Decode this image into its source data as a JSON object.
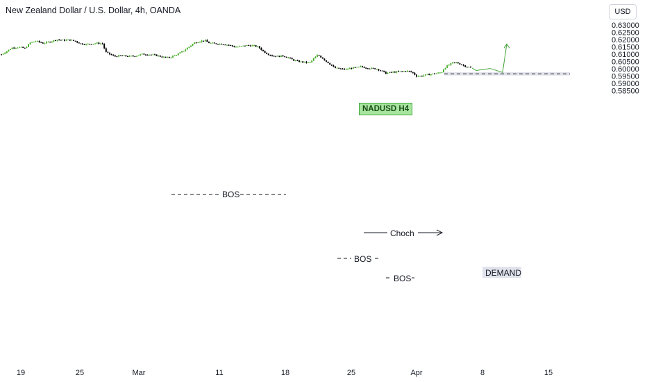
{
  "header": {
    "title": "New Zealand Dollar / U.S. Dollar, 4h, OANDA",
    "currency_button": "USD"
  },
  "annotations": {
    "label": "NADUSD H4",
    "bos_1": "BOS",
    "bos_2": "BOS",
    "bos_3": "BOS",
    "choch": "Choch",
    "demand": "DEMAND"
  },
  "colors": {
    "up": "#4caf2e",
    "down": "#000000",
    "projection": "#43a33a",
    "demand_zone": "#e0e3eb"
  },
  "chart_data": {
    "type": "candlestick",
    "title": "New Zealand Dollar / U.S. Dollar, 4h, OANDA",
    "x_tick_labels": [
      "19",
      "25",
      "Mar",
      "11",
      "18",
      "25",
      "Apr",
      "8",
      "15"
    ],
    "y_tick_labels": [
      "0.63000",
      "0.62500",
      "0.62000",
      "0.61500",
      "0.61000",
      "0.60500",
      "0.60000",
      "0.59500",
      "0.59000",
      "0.58500"
    ],
    "ylim": [
      0.584,
      0.6315
    ],
    "path": [
      [
        0,
        0.6092
      ],
      [
        8,
        0.6115
      ],
      [
        18,
        0.6145
      ],
      [
        28,
        0.6148
      ],
      [
        36,
        0.614
      ],
      [
        44,
        0.618
      ],
      [
        52,
        0.619
      ],
      [
        62,
        0.6175
      ],
      [
        72,
        0.6185
      ],
      [
        82,
        0.62
      ],
      [
        92,
        0.6195
      ],
      [
        100,
        0.6198
      ],
      [
        108,
        0.619
      ],
      [
        116,
        0.6172
      ],
      [
        124,
        0.6168
      ],
      [
        132,
        0.6172
      ],
      [
        140,
        0.6175
      ],
      [
        148,
        0.6172
      ],
      [
        152,
        0.6115
      ],
      [
        158,
        0.61
      ],
      [
        165,
        0.6085
      ],
      [
        175,
        0.609
      ],
      [
        185,
        0.6085
      ],
      [
        195,
        0.6088
      ],
      [
        205,
        0.61
      ],
      [
        215,
        0.6098
      ],
      [
        225,
        0.6092
      ],
      [
        235,
        0.608
      ],
      [
        243,
        0.6075
      ],
      [
        250,
        0.6088
      ],
      [
        258,
        0.6105
      ],
      [
        265,
        0.6125
      ],
      [
        272,
        0.615
      ],
      [
        280,
        0.6178
      ],
      [
        288,
        0.6188
      ],
      [
        295,
        0.6195
      ],
      [
        300,
        0.6178
      ],
      [
        310,
        0.6172
      ],
      [
        320,
        0.617
      ],
      [
        330,
        0.6162
      ],
      [
        338,
        0.615
      ],
      [
        345,
        0.6152
      ],
      [
        355,
        0.616
      ],
      [
        365,
        0.6158
      ],
      [
        372,
        0.615
      ],
      [
        378,
        0.6125
      ],
      [
        384,
        0.6105
      ],
      [
        392,
        0.609
      ],
      [
        400,
        0.6085
      ],
      [
        408,
        0.6088
      ],
      [
        416,
        0.6075
      ],
      [
        422,
        0.606
      ],
      [
        430,
        0.605
      ],
      [
        438,
        0.6045
      ],
      [
        446,
        0.604
      ],
      [
        452,
        0.607
      ],
      [
        458,
        0.6095
      ],
      [
        464,
        0.6075
      ],
      [
        470,
        0.605
      ],
      [
        476,
        0.603
      ],
      [
        482,
        0.6005
      ],
      [
        490,
        0.6
      ],
      [
        498,
        0.5995
      ],
      [
        506,
        0.6005
      ],
      [
        514,
        0.6008
      ],
      [
        520,
        0.6015
      ],
      [
        526,
        0.6008
      ],
      [
        534,
        0.6002
      ],
      [
        542,
        0.6
      ],
      [
        550,
        0.5985
      ],
      [
        556,
        0.5968
      ],
      [
        562,
        0.5975
      ],
      [
        570,
        0.5978
      ],
      [
        578,
        0.598
      ],
      [
        586,
        0.5985
      ],
      [
        594,
        0.5975
      ],
      [
        600,
        0.595
      ],
      [
        606,
        0.595
      ],
      [
        614,
        0.5958
      ],
      [
        620,
        0.5962
      ],
      [
        628,
        0.5968
      ],
      [
        636,
        0.5975
      ],
      [
        640,
        0.6005
      ],
      [
        646,
        0.6025
      ],
      [
        652,
        0.604
      ],
      [
        658,
        0.6042
      ],
      [
        664,
        0.603
      ],
      [
        670,
        0.6018
      ],
      [
        676,
        0.601
      ],
      [
        680,
        0.6005
      ]
    ],
    "demand_zone": {
      "x_from": 640,
      "x_to": 821,
      "y_top": 0.5976,
      "y_bottom": 0.5954,
      "line": 0.5965
    },
    "projection": [
      [
        680,
        0.6005
      ],
      [
        686,
        0.5988
      ],
      [
        706,
        0.6002
      ],
      [
        724,
        0.5975
      ],
      [
        730,
        0.617
      ]
    ]
  }
}
